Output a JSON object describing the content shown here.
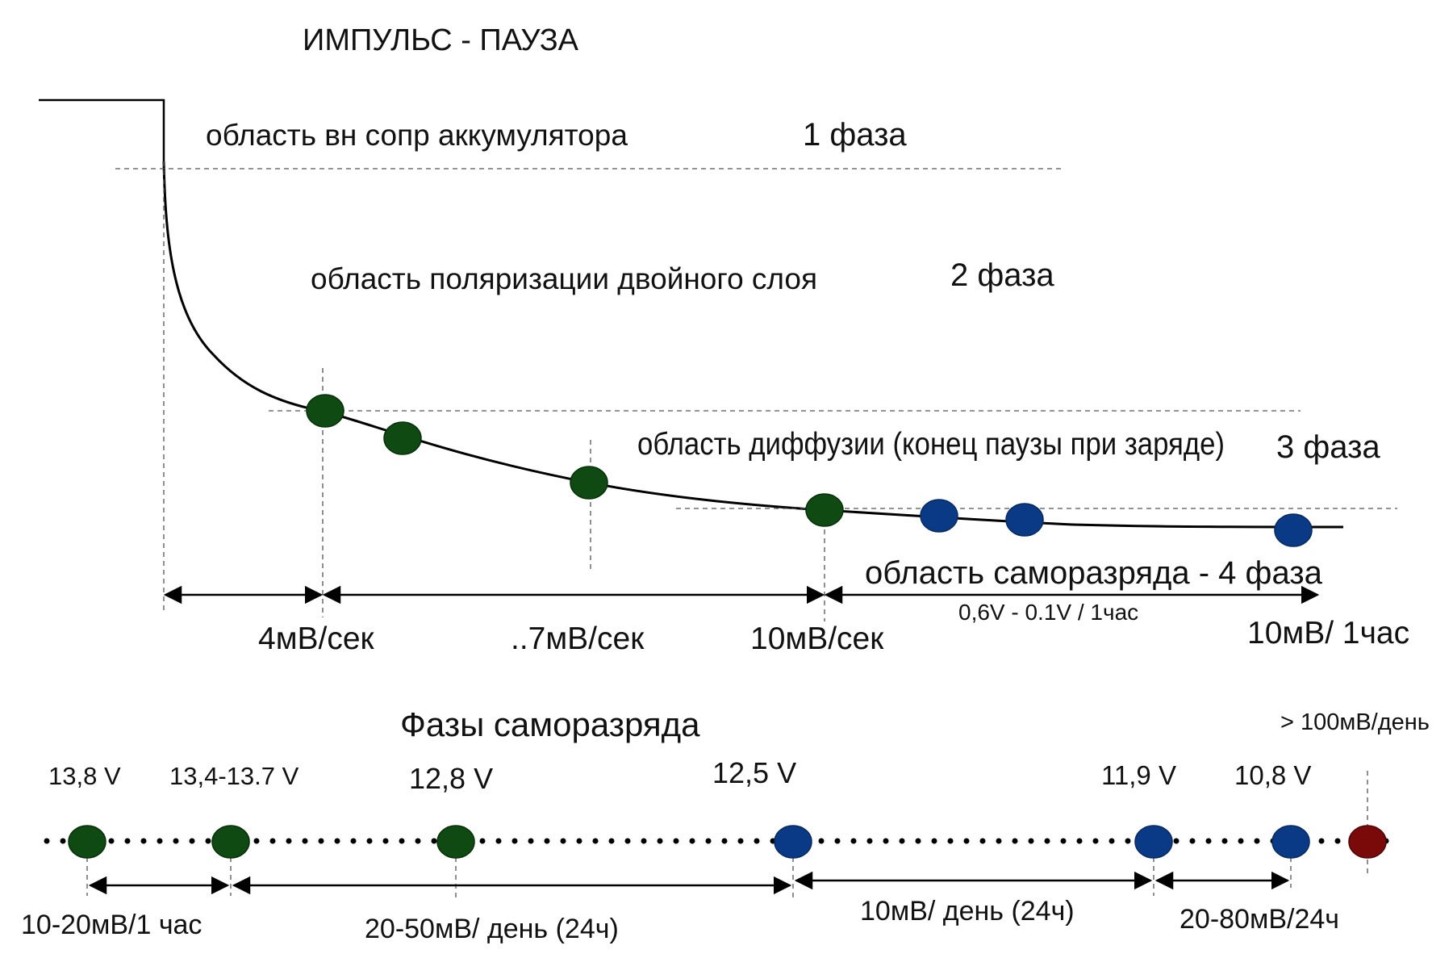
{
  "title": "ИМПУЛЬС - ПАУЗА",
  "colors": {
    "green": "#0e4a12",
    "blue": "#0a3a86",
    "red": "#7a0a0a",
    "line": "#000000",
    "dashed": "#555555"
  },
  "phases": [
    {
      "region": "область вн  сопр аккумулятора",
      "phase": "1 фаза"
    },
    {
      "region": "область поляризации двойного слоя",
      "phase": "2 фаза"
    },
    {
      "region": "область диффузии (конец паузы при заряде)",
      "phase": "3 фаза"
    },
    {
      "region": "область саморазряда - 4 фаза",
      "phase": ""
    }
  ],
  "rates": {
    "r1": "4мВ/сек",
    "r2": "..7мВ/сек",
    "r3": "10мВ/сек",
    "r4_sub": "0,6V - 0.1V / 1час",
    "r4": "10мВ/ 1час"
  },
  "self_discharge": {
    "title": "Фазы саморазряда",
    "extra_label": "> 100мВ/день",
    "voltages": [
      "13,8 V",
      "13,4-13.7 V",
      "12,8 V",
      "12,5 V",
      "11,9 V",
      "10,8 V"
    ],
    "intervals": [
      "10-20мВ/1 час",
      "20-50мВ/ день (24ч)",
      "10мВ/ день (24ч)",
      "20-80мВ/24ч"
    ]
  }
}
